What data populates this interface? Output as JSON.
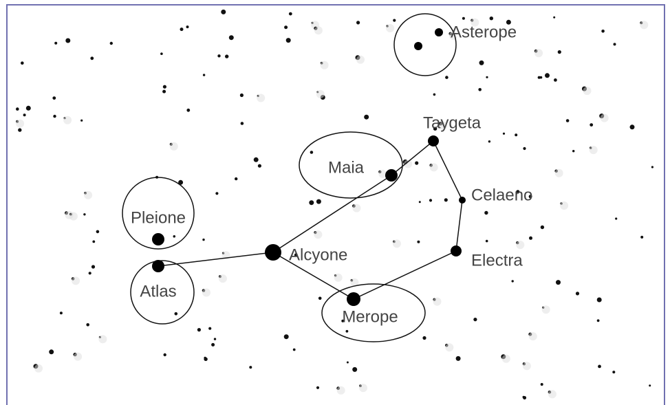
{
  "stars": [
    {
      "label": "Asterope"
    },
    {
      "label": "Taygeta"
    },
    {
      "label": "Maia"
    },
    {
      "label": "Celaeno"
    },
    {
      "label": "Electra"
    },
    {
      "label": "Alcyone"
    },
    {
      "label": "Merope"
    },
    {
      "label": "Atlas"
    },
    {
      "label": "Pleione"
    }
  ]
}
